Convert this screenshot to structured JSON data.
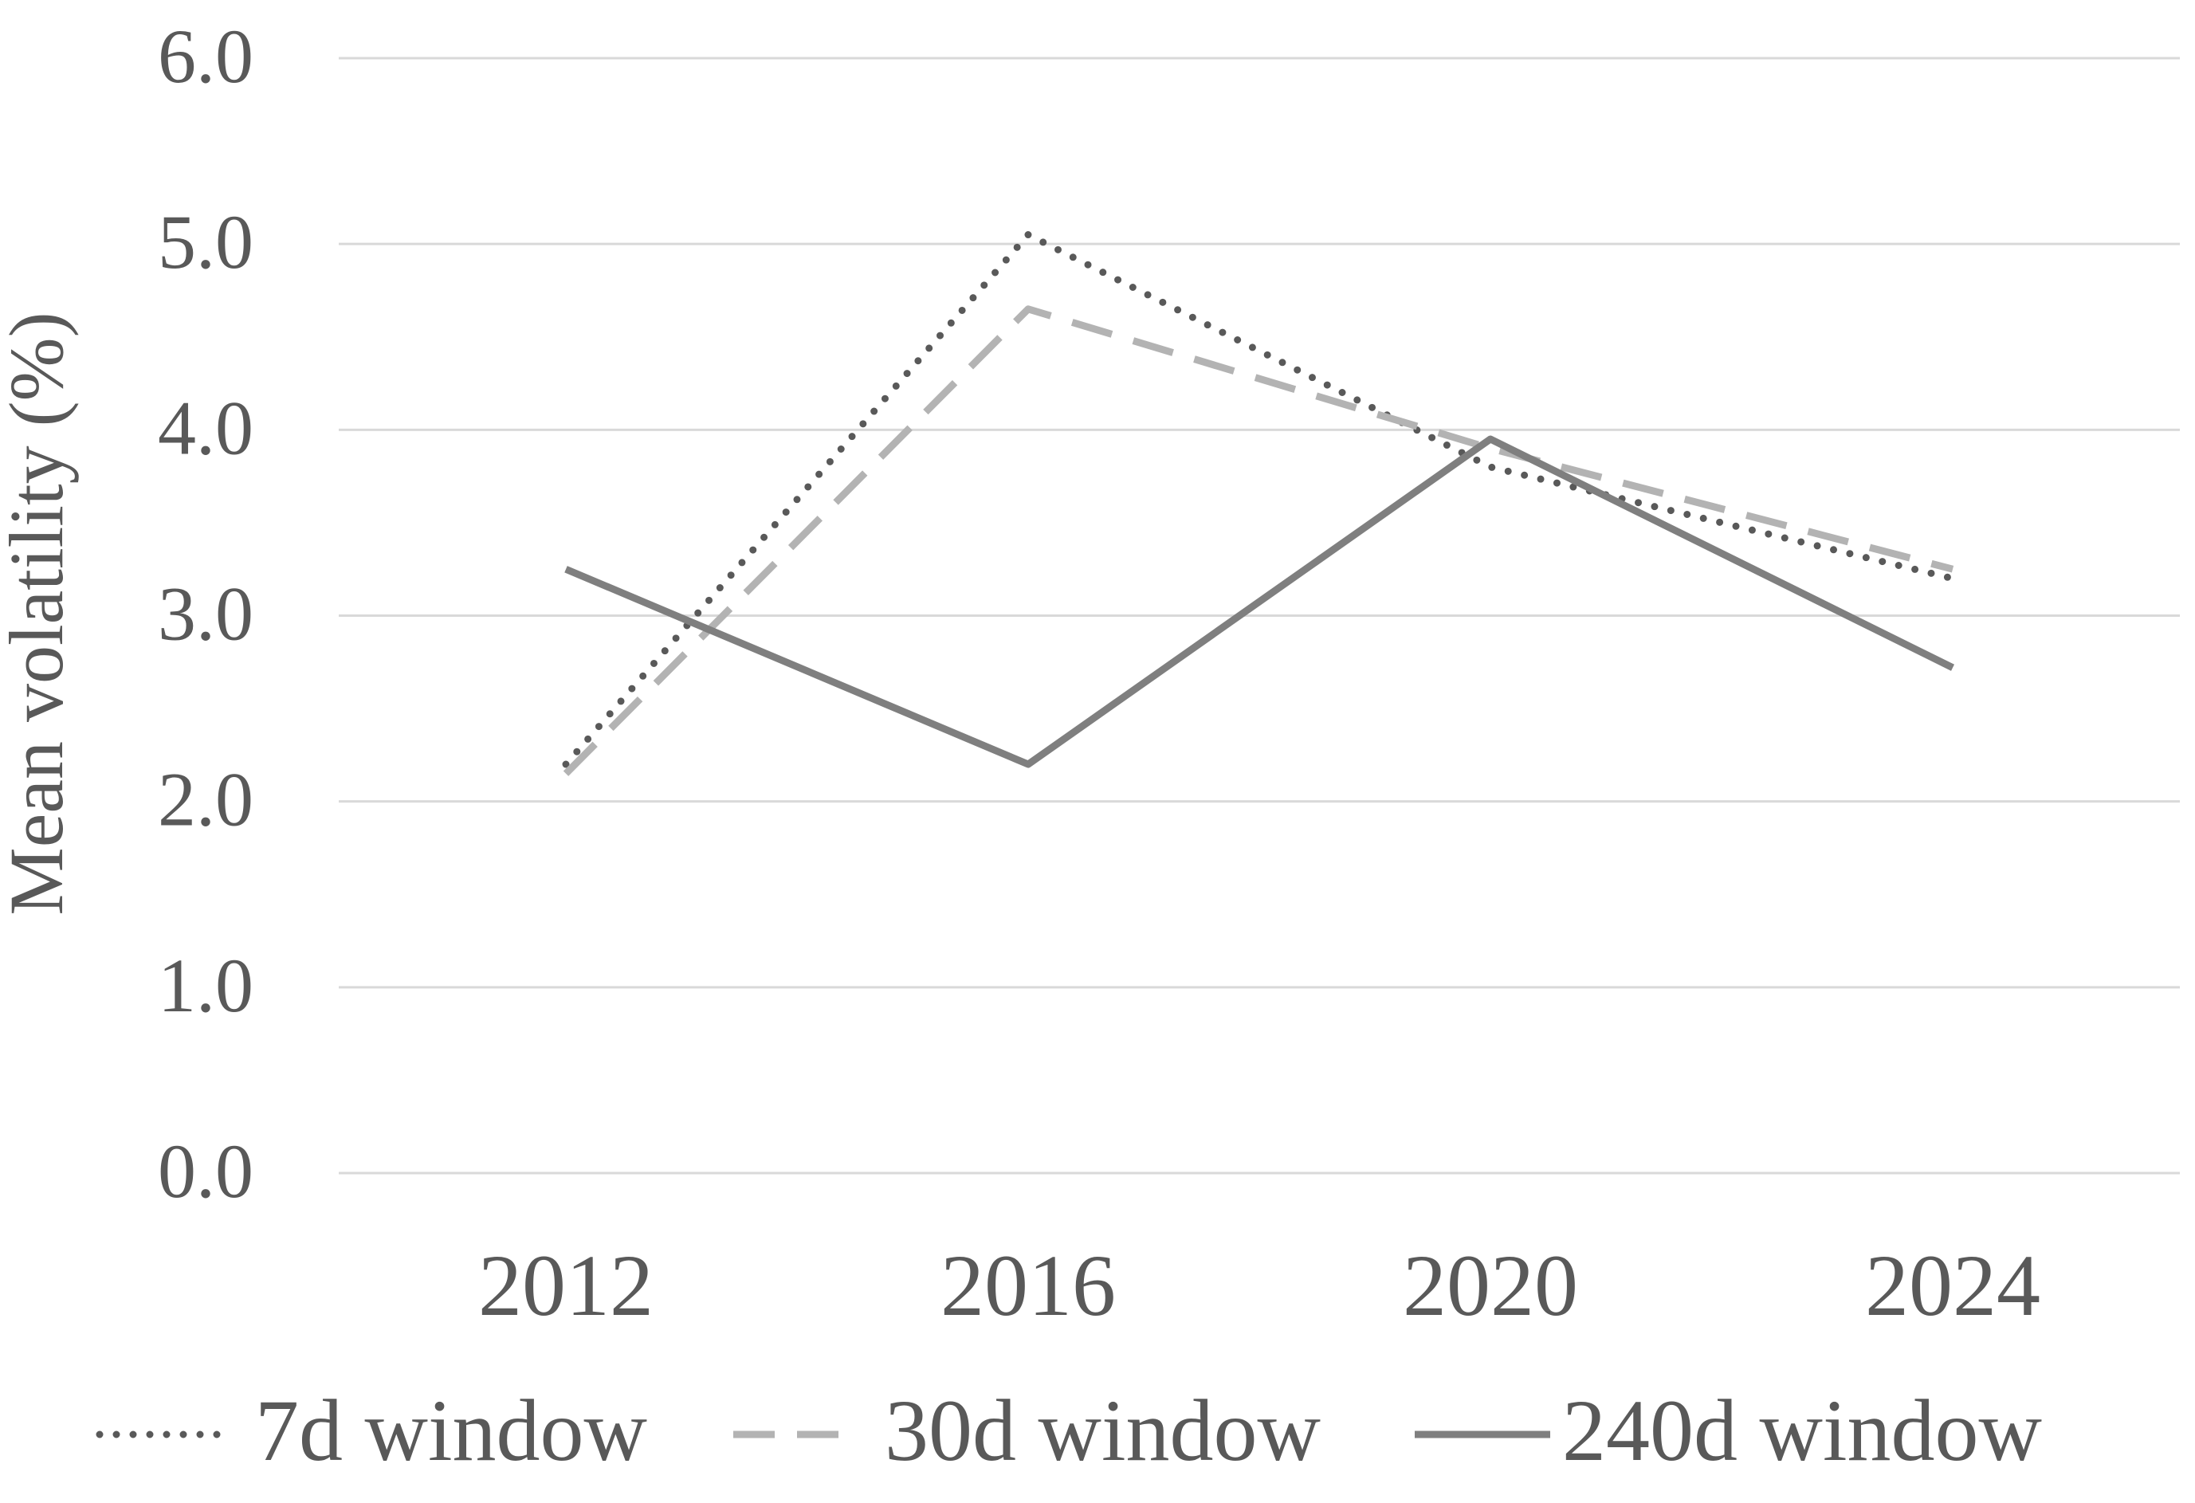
{
  "chart_data": {
    "type": "line",
    "title": "",
    "xlabel": "",
    "ylabel": "Mean volatility (%)",
    "categories": [
      "2012",
      "2016",
      "2020",
      "2024"
    ],
    "ylim": [
      0,
      6
    ],
    "yticks": [
      "0.0",
      "1.0",
      "2.0",
      "3.0",
      "4.0",
      "5.0",
      "6.0"
    ],
    "grid": true,
    "legend_position": "bottom",
    "series": [
      {
        "name": "7d window",
        "values": [
          2.2,
          5.05,
          3.8,
          3.2
        ],
        "color": "#595959",
        "style": "dotted"
      },
      {
        "name": "30d window",
        "values": [
          2.15,
          4.65,
          3.9,
          3.25
        ],
        "color": "#b3b3b3",
        "style": "dashed"
      },
      {
        "name": "240d window",
        "values": [
          3.25,
          2.2,
          3.95,
          2.72
        ],
        "color": "#7f7f7f",
        "style": "solid"
      }
    ]
  }
}
